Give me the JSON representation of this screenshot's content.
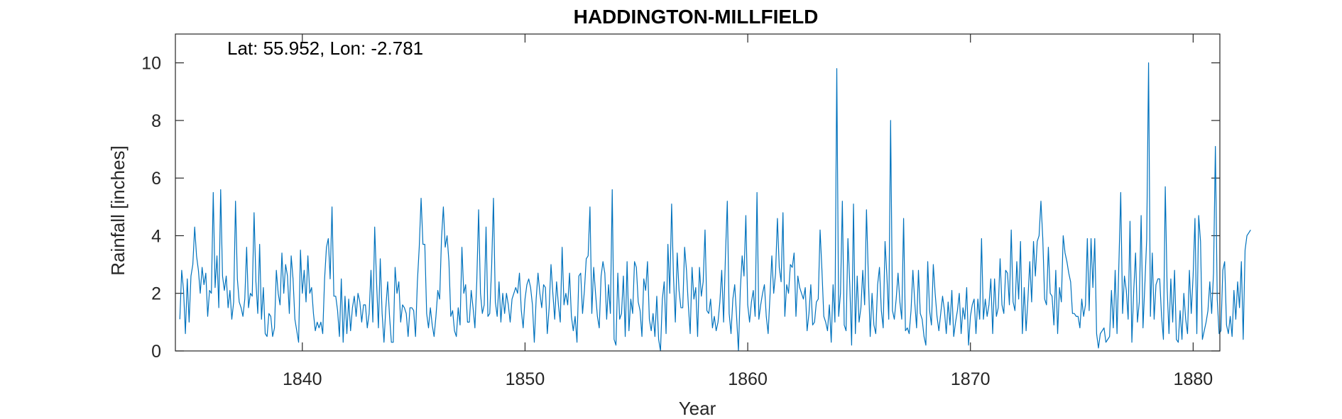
{
  "chart_data": {
    "type": "line",
    "title": "HADDINGTON-MILLFIELD",
    "xlabel": "Year",
    "ylabel": "Rainfall [inches]",
    "annotation": "Lat: 55.952, Lon: -2.781",
    "xlim": [
      1834.3,
      1881.2
    ],
    "ylim": [
      0,
      11
    ],
    "xticks": [
      1840,
      1850,
      1860,
      1870,
      1880
    ],
    "yticks": [
      0,
      2,
      4,
      6,
      8,
      10
    ],
    "xtick_labels": [
      "1840",
      "1850",
      "1860",
      "1870",
      "1880"
    ],
    "ytick_labels": [
      "0",
      "2",
      "4",
      "6",
      "8",
      "10"
    ],
    "x_start": 1834.5,
    "x_step": 0.08333,
    "series": [
      {
        "name": "Monthly rainfall",
        "color": "#0072BD",
        "values": [
          1.1,
          2.8,
          2.1,
          0.6,
          2.5,
          1.0,
          2.6,
          3.0,
          4.3,
          3.3,
          2.8,
          2.0,
          2.9,
          2.3,
          2.7,
          1.2,
          2.1,
          2.0,
          5.5,
          2.2,
          3.3,
          1.5,
          5.6,
          2.6,
          2.1,
          2.6,
          1.5,
          2.1,
          1.1,
          1.7,
          5.2,
          2.5,
          1.7,
          1.5,
          1.2,
          1.8,
          3.6,
          1.5,
          2.0,
          1.9,
          4.8,
          2.4,
          1.3,
          3.7,
          1.1,
          2.2,
          0.6,
          0.5,
          1.3,
          1.2,
          0.5,
          0.8,
          2.8,
          2.0,
          1.6,
          3.4,
          2.0,
          3.0,
          2.6,
          1.3,
          3.3,
          2.5,
          1.1,
          0.7,
          0.3,
          3.5,
          2.0,
          2.8,
          1.7,
          3.3,
          2.0,
          2.2,
          1.3,
          0.7,
          1.0,
          0.8,
          1.0,
          0.6,
          2.5,
          3.6,
          3.9,
          2.5,
          5.0,
          1.9,
          1.9,
          1.4,
          0.5,
          2.5,
          0.3,
          1.9,
          0.6,
          1.8,
          0.7,
          1.5,
          1.9,
          1.2,
          2.0,
          1.7,
          1.0,
          1.6,
          1.6,
          0.8,
          1.3,
          2.8,
          1.0,
          4.3,
          2.4,
          0.8,
          3.2,
          1.3,
          0.3,
          1.5,
          2.4,
          1.2,
          0.3,
          0.3,
          2.9,
          2.0,
          2.4,
          1.0,
          1.6,
          1.5,
          1.3,
          0.5,
          1.5,
          1.5,
          1.4,
          0.5,
          2.4,
          3.6,
          5.3,
          3.7,
          3.7,
          1.3,
          0.8,
          1.5,
          0.9,
          0.5,
          1.2,
          2.1,
          1.8,
          3.9,
          5.0,
          3.6,
          4.0,
          3.1,
          1.2,
          1.4,
          0.7,
          0.5,
          1.5,
          0.9,
          3.6,
          2.0,
          2.3,
          1.0,
          1.0,
          2.1,
          1.5,
          0.8,
          2.4,
          4.9,
          2.0,
          1.3,
          1.6,
          4.3,
          1.2,
          1.3,
          2.9,
          5.3,
          1.7,
          1.2,
          2.4,
          1.0,
          2.0,
          1.3,
          2.0,
          1.6,
          1.0,
          1.8,
          2.0,
          2.2,
          2.0,
          2.7,
          1.4,
          0.8,
          1.8,
          2.3,
          2.5,
          2.2,
          1.6,
          0.3,
          1.8,
          2.7,
          2.0,
          1.5,
          2.3,
          2.2,
          0.6,
          1.5,
          3.0,
          2.0,
          1.1,
          2.4,
          1.6,
          1.0,
          3.6,
          1.6,
          2.0,
          1.6,
          2.7,
          1.2,
          0.7,
          1.2,
          0.3,
          2.6,
          2.7,
          1.3,
          2.1,
          3.2,
          3.3,
          5.0,
          1.3,
          2.9,
          2.0,
          1.2,
          0.8,
          2.6,
          3.1,
          2.7,
          1.1,
          2.3,
          1.3,
          5.6,
          0.4,
          0.2,
          2.7,
          1.1,
          1.3,
          2.6,
          0.5,
          3.1,
          0.7,
          1.8,
          1.3,
          3.1,
          2.9,
          1.7,
          1.4,
          0.5,
          2.5,
          2.1,
          3.1,
          1.1,
          0.7,
          1.3,
          0.5,
          1.9,
          0.4,
          0.0,
          1.8,
          2.4,
          0.6,
          3.7,
          2.0,
          5.1,
          2.6,
          1.0,
          3.4,
          2.1,
          1.5,
          1.5,
          3.6,
          2.8,
          1.6,
          0.6,
          2.9,
          1.8,
          2.2,
          0.5,
          2.9,
          1.9,
          2.4,
          4.2,
          1.4,
          1.3,
          1.8,
          0.8,
          1.2,
          0.7,
          1.0,
          1.7,
          2.8,
          1.0,
          3.3,
          5.2,
          1.3,
          0.6,
          1.8,
          2.3,
          1.2,
          0.0,
          2.1,
          3.3,
          2.6,
          4.7,
          1.6,
          1.0,
          1.7,
          2.1,
          1.2,
          5.5,
          1.1,
          1.6,
          2.0,
          2.3,
          1.2,
          0.6,
          1.9,
          3.3,
          2.0,
          2.7,
          4.6,
          2.9,
          2.4,
          4.8,
          1.2,
          2.3,
          2.0,
          3.0,
          2.9,
          3.4,
          1.2,
          2.6,
          2.2,
          2.0,
          1.8,
          2.2,
          0.7,
          1.3,
          2.3,
          0.9,
          1.0,
          1.7,
          1.8,
          4.2,
          2.8,
          1.2,
          1.0,
          0.7,
          1.6,
          0.3,
          2.3,
          1.0,
          9.8,
          1.2,
          2.0,
          5.2,
          0.9,
          0.7,
          3.9,
          2.3,
          0.2,
          5.1,
          0.6,
          2.6,
          1.0,
          1.5,
          2.8,
          1.6,
          4.9,
          2.6,
          0.5,
          2.0,
          0.9,
          0.6,
          2.3,
          2.9,
          1.4,
          0.8,
          3.8,
          2.6,
          1.1,
          8.0,
          1.4,
          1.1,
          1.8,
          2.7,
          1.7,
          1.1,
          4.6,
          0.7,
          0.8,
          0.6,
          1.4,
          2.8,
          1.7,
          0.8,
          2.8,
          1.3,
          1.1,
          0.5,
          0.2,
          3.1,
          1.4,
          0.9,
          3.0,
          2.0,
          1.2,
          0.7,
          1.3,
          1.9,
          1.4,
          0.6,
          1.7,
          0.9,
          2.1,
          0.5,
          1.0,
          1.4,
          2.0,
          0.6,
          1.5,
          1.1,
          2.2,
          0.2,
          1.2,
          1.6,
          1.8,
          0.6,
          1.8,
          1.1,
          3.9,
          1.1,
          1.8,
          1.2,
          1.6,
          2.5,
          0.6,
          2.5,
          1.2,
          1.5,
          3.2,
          1.6,
          1.3,
          2.8,
          2.7,
          1.6,
          4.2,
          1.7,
          1.4,
          3.1,
          1.8,
          3.8,
          0.6,
          2.2,
          0.7,
          1.8,
          3.1,
          1.7,
          3.8,
          2.6,
          3.8,
          4.0,
          5.2,
          3.9,
          1.8,
          1.6,
          3.6,
          2.0,
          1.9,
          0.9,
          2.8,
          0.6,
          2.2,
          1.7,
          4.0,
          3.4,
          3.1,
          2.7,
          2.4,
          1.3,
          1.3,
          1.2,
          1.2,
          0.8,
          1.8,
          1.2,
          1.6,
          3.9,
          1.4,
          3.9,
          2.2,
          3.9,
          0.6,
          0.1,
          0.6,
          0.7,
          0.8,
          0.3,
          0.4,
          0.5,
          2.1,
          0.8,
          2.8,
          0.6,
          3.0,
          5.5,
          1.3,
          2.6,
          2.1,
          1.1,
          4.5,
          0.3,
          2.1,
          3.4,
          1.0,
          1.7,
          4.7,
          0.8,
          2.3,
          3.9,
          10.0,
          1.2,
          3.4,
          1.1,
          2.3,
          2.5,
          2.5,
          1.2,
          0.4,
          5.7,
          2.2,
          0.6,
          2.5,
          1.0,
          2.8,
          0.4,
          0.3,
          1.4,
          0.4,
          2.0,
          1.1,
          0.6,
          2.8,
          1.3,
          2.6,
          4.6,
          0.6,
          4.7,
          3.8,
          0.4,
          0.7,
          1.0,
          1.4,
          2.4,
          1.3,
          2.7,
          7.1,
          1.8,
          0.6,
          0.7,
          2.8,
          3.1,
          0.9,
          0.6,
          1.2,
          0.5,
          2.1,
          1.1,
          2.4,
          1.5,
          3.1,
          0.4,
          3.5,
          4.0,
          4.1,
          4.2
        ]
      }
    ]
  }
}
